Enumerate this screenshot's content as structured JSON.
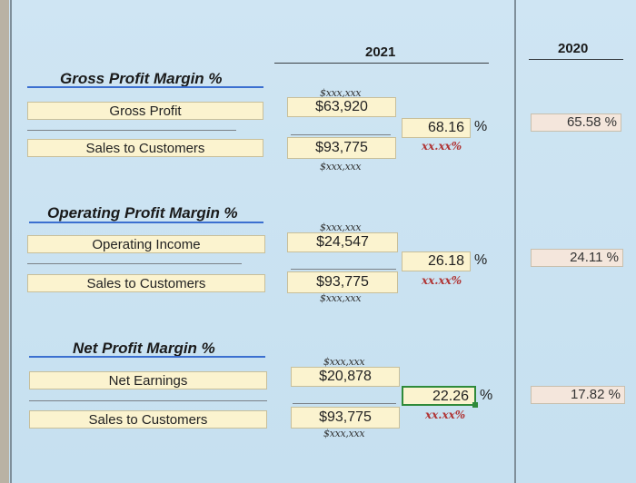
{
  "headers": {
    "year_current": "2021",
    "year_prior": "2020"
  },
  "hints": {
    "currency_format": "$xxx,xxx",
    "percent_format": "xx.xx%"
  },
  "sections": [
    {
      "title": "Gross Profit Margin %",
      "numerator_label": "Gross Profit",
      "numerator_value": "$63,920",
      "denominator_label": "Sales to Customers",
      "denominator_value": "$93,775",
      "current_pct": "68.16",
      "prior_pct": "65.58 %"
    },
    {
      "title": "Operating Profit Margin %",
      "numerator_label": "Operating Income",
      "numerator_value": "$24,547",
      "denominator_label": "Sales to Customers",
      "denominator_value": "$93,775",
      "current_pct": "26.18",
      "prior_pct": "24.11 %"
    },
    {
      "title": "Net Profit Margin %",
      "numerator_label": "Net Earnings",
      "numerator_value": "$20,878",
      "denominator_label": "Sales to Customers",
      "denominator_value": "$93,775",
      "current_pct": "22.26",
      "prior_pct": "17.82 %"
    }
  ],
  "percent_sign": "%"
}
